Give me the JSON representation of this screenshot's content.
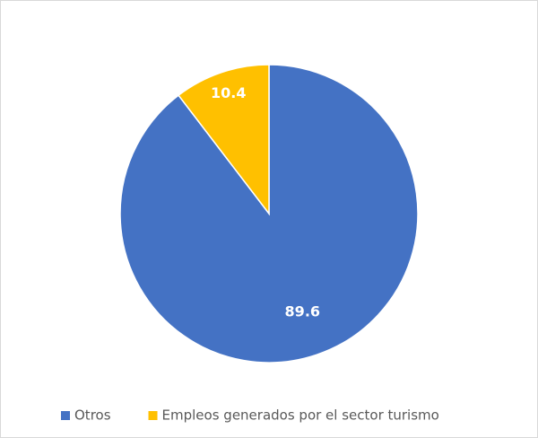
{
  "chart_data": {
    "type": "pie",
    "categories": [
      "Otros",
      "Empleos generados por el sector turismo"
    ],
    "values": [
      89.6,
      10.4
    ],
    "colors": [
      "#4472c4",
      "#ffc000"
    ],
    "legend": "bottom"
  }
}
